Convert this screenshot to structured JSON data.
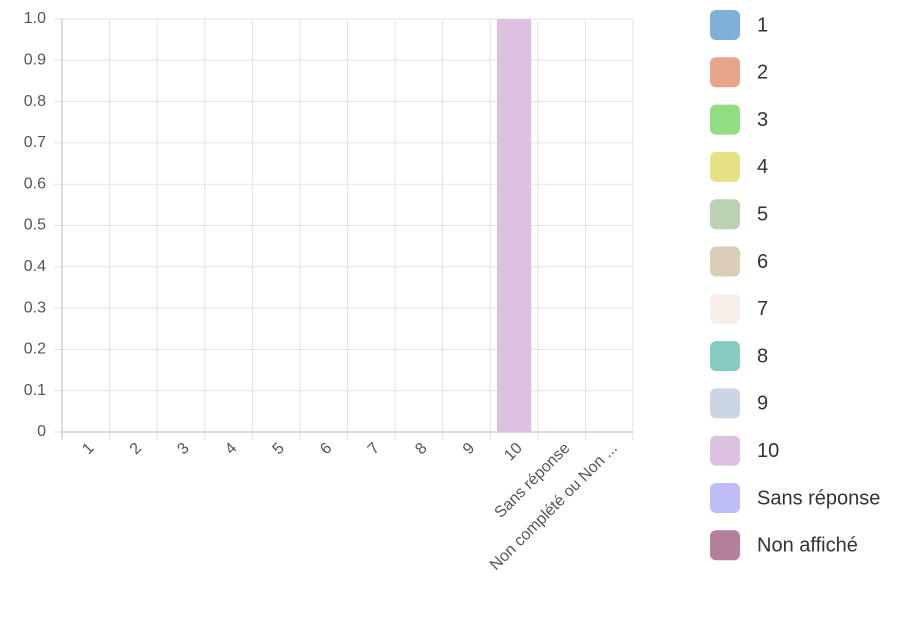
{
  "chart_data": {
    "type": "bar",
    "categories": [
      "1",
      "2",
      "3",
      "4",
      "5",
      "6",
      "7",
      "8",
      "9",
      "10",
      "Sans réponse",
      "Non complété ou Non ..."
    ],
    "values": [
      0,
      0,
      0,
      0,
      0,
      0,
      0,
      0,
      0,
      1,
      0,
      0
    ],
    "colors": [
      "#7fb0d8",
      "#e8a48a",
      "#92dd82",
      "#e4e282",
      "#bbd1b4",
      "#dccdb6",
      "#f8eeea",
      "#86cbc3",
      "#cbd5e3",
      "#dcc1e1",
      "#bebdf5",
      "#b37f99"
    ],
    "legend": [
      "1",
      "2",
      "3",
      "4",
      "5",
      "6",
      "7",
      "8",
      "9",
      "10",
      "Sans réponse",
      "Non affiché"
    ],
    "ylim": [
      0,
      1
    ],
    "yticks": [
      0,
      0.1,
      0.2,
      0.3,
      0.4,
      0.5,
      0.6,
      0.7,
      0.8,
      0.9,
      {
        "value": 1,
        "label": "1.0"
      }
    ],
    "grid": true
  }
}
